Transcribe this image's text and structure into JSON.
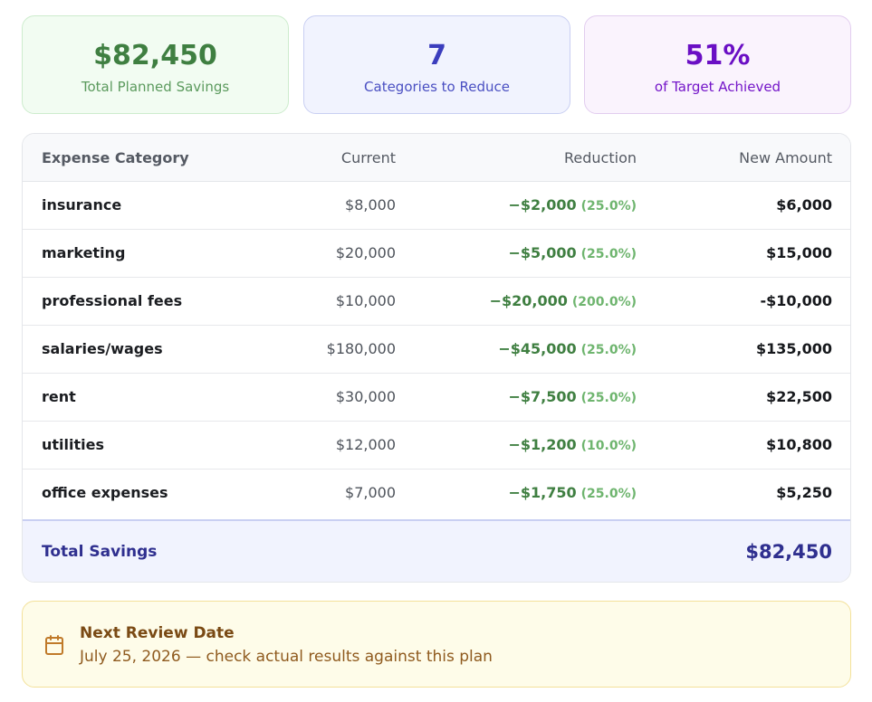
{
  "summary_cards": [
    {
      "value": "$82,450",
      "label": "Total Planned Savings"
    },
    {
      "value": "7",
      "label": "Categories to Reduce"
    },
    {
      "value": "51%",
      "label": "of Target Achieved"
    }
  ],
  "table": {
    "headers": [
      "Expense Category",
      "Current",
      "Reduction",
      "New Amount"
    ],
    "rows": [
      {
        "category": "insurance",
        "current": "$8,000",
        "reduction": "−$2,000",
        "percent": "(25.0%)",
        "new_amount": "$6,000"
      },
      {
        "category": "marketing",
        "current": "$20,000",
        "reduction": "−$5,000",
        "percent": "(25.0%)",
        "new_amount": "$15,000"
      },
      {
        "category": "professional fees",
        "current": "$10,000",
        "reduction": "−$20,000",
        "percent": "(200.0%)",
        "new_amount": "-$10,000"
      },
      {
        "category": "salaries/wages",
        "current": "$180,000",
        "reduction": "−$45,000",
        "percent": "(25.0%)",
        "new_amount": "$135,000"
      },
      {
        "category": "rent",
        "current": "$30,000",
        "reduction": "−$7,500",
        "percent": "(25.0%)",
        "new_amount": "$22,500"
      },
      {
        "category": "utilities",
        "current": "$12,000",
        "reduction": "−$1,200",
        "percent": "(10.0%)",
        "new_amount": "$10,800"
      },
      {
        "category": "office expenses",
        "current": "$7,000",
        "reduction": "−$1,750",
        "percent": "(25.0%)",
        "new_amount": "$5,250"
      }
    ],
    "footer": {
      "label": "Total Savings",
      "value": "$82,450"
    }
  },
  "review": {
    "icon": "calendar-icon",
    "title": "Next Review Date",
    "text": "July 25, 2026 — check actual results against this plan"
  },
  "colors": {
    "savings_green": "#3f7f41",
    "accent_indigo": "#3b3dbd",
    "accent_purple": "#6a0fc4",
    "review_brown": "#7a4a14"
  }
}
